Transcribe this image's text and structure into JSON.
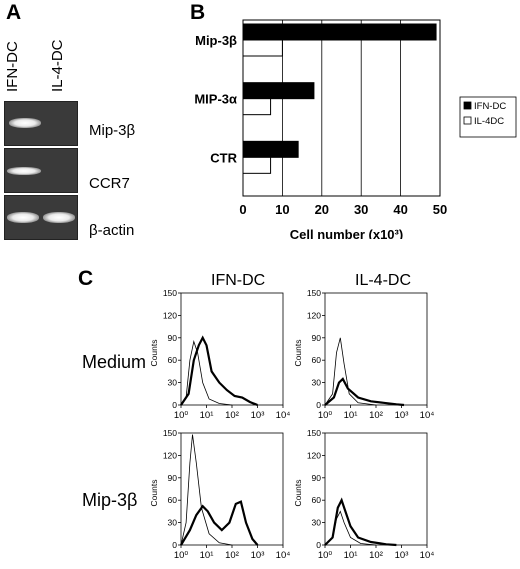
{
  "panel_a": {
    "letter": "A",
    "lanes": [
      "IFN-DC",
      "IL-4-DC"
    ],
    "genes": [
      "Mip-3β",
      "CCR7",
      "β-actin"
    ]
  },
  "panel_b": {
    "letter": "B"
  },
  "panel_c": {
    "letter": "C",
    "columns": [
      "IFN-DC",
      "IL-4-DC"
    ],
    "rows": [
      "Medium",
      "Mip-3β"
    ],
    "ylabel": "Counts",
    "yticks": [
      "0",
      "30",
      "60",
      "90",
      "120",
      "150"
    ],
    "xticks": [
      "10⁰",
      "10¹",
      "10²",
      "10³",
      "10⁴"
    ]
  },
  "chart_data": [
    {
      "type": "bar",
      "orientation": "horizontal",
      "categories": [
        "Mip-3β",
        "MIP-3α",
        "CTR"
      ],
      "series": [
        {
          "name": "IFN-DC",
          "values": [
            49,
            18,
            14
          ],
          "color": "#000000"
        },
        {
          "name": "IL-4DC",
          "values": [
            10,
            7,
            7
          ],
          "color": "#ffffff"
        }
      ],
      "xlabel": "Cell number (x10³)",
      "xlim": [
        0,
        50
      ],
      "xticks": [
        0,
        10,
        20,
        30,
        40,
        50
      ],
      "grid": true,
      "legend": "right"
    }
  ]
}
